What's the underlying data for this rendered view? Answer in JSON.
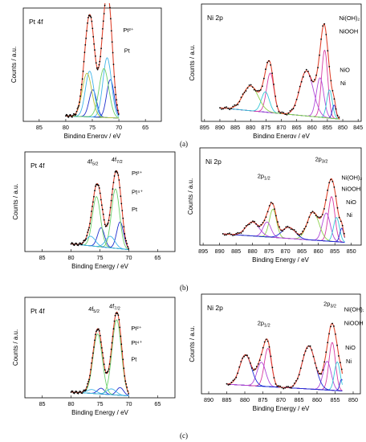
{
  "figure": {
    "row_labels": [
      "(a)",
      "(b)",
      "(c)"
    ]
  },
  "colors": {
    "raw_points": "#000000",
    "envelope": "#e0462f",
    "background": "#2a8f3a",
    "pt_metal": "#1d2ecf",
    "pt_2plus": "#3fb4e8",
    "pt_4plus": "#6ad06a",
    "pt_2plus_alt": "#b6c23a",
    "ni_metal": "#1a2bd6",
    "ni_oxide": "#35c7d8",
    "ni_oohh": "#b248d8",
    "ni_hydrox": "#d73aa3",
    "ni_sat": "#1a2bd6",
    "ni_sat2": "#8dd14a"
  },
  "chart_data": [
    {
      "panel": "a-left",
      "type": "line",
      "title": "Pt 4f",
      "xlabel": "Binding Energy / eV",
      "ylabel": "Counts / a.u.",
      "xlim": [
        88,
        62
      ],
      "ticks": [
        85,
        80,
        75,
        70,
        65
      ],
      "data_xlim": [
        80,
        70
      ],
      "annotations": [
        {
          "text": "Pt²⁺",
          "x": 69.2,
          "y": 0.82
        },
        {
          "text": "Pt",
          "x": 69.0,
          "y": 0.63
        }
      ],
      "peaks": [
        {
          "name": "Pt",
          "center": 74.9,
          "sigma": 0.7,
          "amp": 0.25,
          "color": "pt_metal"
        },
        {
          "name": "Pt",
          "center": 71.6,
          "sigma": 0.7,
          "amp": 0.35,
          "color": "pt_metal"
        },
        {
          "name": "Pt²⁺",
          "center": 75.5,
          "sigma": 0.8,
          "amp": 0.42,
          "color": "pt_2plus"
        },
        {
          "name": "Pt²⁺",
          "center": 72.2,
          "sigma": 0.8,
          "amp": 0.55,
          "color": "pt_2plus"
        },
        {
          "name": "",
          "center": 76.0,
          "sigma": 0.9,
          "amp": 0.4,
          "color": "pt_2plus_alt"
        },
        {
          "name": "",
          "center": 72.8,
          "sigma": 0.9,
          "amp": 0.45,
          "color": "pt_4plus"
        }
      ],
      "baseline": [
        0.05,
        0.03
      ]
    },
    {
      "panel": "a-right",
      "type": "line",
      "title": "Ni 2p",
      "xlabel": "Binding Energy / eV",
      "ylabel": "Counts / a.u.",
      "xlim": [
        896,
        844
      ],
      "ticks": [
        895,
        890,
        885,
        880,
        875,
        870,
        865,
        860,
        855,
        850,
        845
      ],
      "data_xlim": [
        890,
        851
      ],
      "annotations": [
        {
          "text": "Ni(OH)₂",
          "x": 851.2,
          "y": 0.9
        },
        {
          "text": "NiOOH",
          "x": 851.2,
          "y": 0.78
        },
        {
          "text": "NiO",
          "x": 851.0,
          "y": 0.44
        },
        {
          "text": "Ni",
          "x": 850.8,
          "y": 0.32
        }
      ],
      "peaks": [
        {
          "name": "Ni(OH)₂",
          "center": 855.9,
          "sigma": 1.0,
          "amp": 0.6,
          "color": "ni_hydrox"
        },
        {
          "name": "NiOOH",
          "center": 857.4,
          "sigma": 1.2,
          "amp": 0.35,
          "color": "ni_oohh"
        },
        {
          "name": "NiO",
          "center": 854.3,
          "sigma": 0.9,
          "amp": 0.25,
          "color": "ni_oxide"
        },
        {
          "name": "Ni",
          "center": 852.8,
          "sigma": 0.6,
          "amp": 0.12,
          "color": "ni_metal"
        },
        {
          "name": "",
          "center": 861.8,
          "sigma": 2.2,
          "amp": 0.4,
          "color": "ni_oohh"
        },
        {
          "name": "",
          "center": 873.6,
          "sigma": 1.2,
          "amp": 0.35,
          "color": "ni_hydrox"
        },
        {
          "name": "",
          "center": 875.2,
          "sigma": 1.3,
          "amp": 0.18,
          "color": "ni_oxide"
        },
        {
          "name": "",
          "center": 880.0,
          "sigma": 2.5,
          "amp": 0.22,
          "color": "ni_sat2"
        }
      ],
      "baseline": [
        0.12,
        0.02
      ]
    },
    {
      "panel": "b-left",
      "type": "line",
      "title": "Pt 4f",
      "xlabel": "Binding Energy / eV",
      "ylabel": "Counts / a.u.",
      "xlim": [
        88,
        62
      ],
      "ticks": [
        85,
        80,
        75,
        70,
        65
      ],
      "data_xlim": [
        80,
        70
      ],
      "annotations": [
        {
          "text": "4f5/2",
          "x": 77.2,
          "y": 0.92
        },
        {
          "text": "4f7/2",
          "x": 73.0,
          "y": 0.94
        },
        {
          "text": "Pt²⁺",
          "x": 69.5,
          "y": 0.8
        },
        {
          "text": "Pt⁴⁺",
          "x": 69.5,
          "y": 0.6
        },
        {
          "text": "Pt",
          "x": 69.5,
          "y": 0.42
        }
      ],
      "peaks": [
        {
          "name": "Pt",
          "center": 74.8,
          "sigma": 0.6,
          "amp": 0.2,
          "color": "pt_metal"
        },
        {
          "name": "Pt",
          "center": 71.5,
          "sigma": 0.6,
          "amp": 0.28,
          "color": "pt_metal"
        },
        {
          "name": "Pt²⁺",
          "center": 75.6,
          "sigma": 0.7,
          "amp": 0.52,
          "color": "pt_4plus"
        },
        {
          "name": "Pt²⁺",
          "center": 72.3,
          "sigma": 0.7,
          "amp": 0.62,
          "color": "pt_4plus"
        },
        {
          "name": "Pt⁴⁺",
          "center": 76.6,
          "sigma": 0.8,
          "amp": 0.1,
          "color": "pt_2plus"
        },
        {
          "name": "Pt⁴⁺",
          "center": 73.2,
          "sigma": 0.8,
          "amp": 0.12,
          "color": "pt_2plus"
        }
      ],
      "baseline": [
        0.08,
        0.02
      ]
    },
    {
      "panel": "b-right",
      "type": "line",
      "title": "Ni 2p",
      "xlabel": "Binding Energy / eV",
      "ylabel": "Counts / a.u.",
      "xlim": [
        896,
        847
      ],
      "ticks": [
        895,
        890,
        885,
        880,
        875,
        870,
        865,
        860,
        855,
        850
      ],
      "data_xlim": [
        889,
        852
      ],
      "annotations": [
        {
          "text": "2p1/2",
          "x": 878.5,
          "y": 0.72
        },
        {
          "text": "2p3/2",
          "x": 861.0,
          "y": 0.9
        },
        {
          "text": "Ni(OH)₂",
          "x": 853.0,
          "y": 0.7
        },
        {
          "text": "NiOOH",
          "x": 853.0,
          "y": 0.58
        },
        {
          "text": "NiO",
          "x": 851.6,
          "y": 0.44
        },
        {
          "text": "Ni",
          "x": 851.4,
          "y": 0.3
        }
      ],
      "peaks": [
        {
          "name": "Ni(OH)₂",
          "center": 856.0,
          "sigma": 1.0,
          "amp": 0.48,
          "color": "ni_hydrox"
        },
        {
          "name": "NiOOH",
          "center": 857.6,
          "sigma": 1.2,
          "amp": 0.3,
          "color": "ni_oohh"
        },
        {
          "name": "NiO",
          "center": 854.5,
          "sigma": 0.9,
          "amp": 0.26,
          "color": "ni_oxide"
        },
        {
          "name": "Ni",
          "center": 852.9,
          "sigma": 0.6,
          "amp": 0.15,
          "color": "ni_metal"
        },
        {
          "name": "",
          "center": 861.6,
          "sigma": 1.8,
          "amp": 0.3,
          "color": "ni_sat2"
        },
        {
          "name": "",
          "center": 873.8,
          "sigma": 1.1,
          "amp": 0.3,
          "color": "ni_sat2"
        },
        {
          "name": "",
          "center": 875.6,
          "sigma": 1.2,
          "amp": 0.16,
          "color": "ni_oohh"
        },
        {
          "name": "",
          "center": 880.0,
          "sigma": 2.0,
          "amp": 0.15,
          "color": "ni_oohh"
        },
        {
          "name": "",
          "center": 869.0,
          "sigma": 2.0,
          "amp": 0.12,
          "color": "ni_sat"
        }
      ],
      "baseline": [
        0.12,
        0.03
      ]
    },
    {
      "panel": "c-left",
      "type": "line",
      "title": "Pt 4f",
      "xlabel": "Binding Energy / eV",
      "ylabel": "Counts / a.u.",
      "xlim": [
        88,
        62
      ],
      "ticks": [
        85,
        80,
        75,
        70,
        65
      ],
      "data_xlim": [
        80,
        70
      ],
      "annotations": [
        {
          "text": "4f5/2",
          "x": 77.0,
          "y": 0.9
        },
        {
          "text": "4f7/2",
          "x": 73.4,
          "y": 0.93
        },
        {
          "text": "Pt²⁺",
          "x": 69.6,
          "y": 0.7
        },
        {
          "text": "Pt⁴⁺",
          "x": 69.6,
          "y": 0.55
        },
        {
          "text": "Pt",
          "x": 69.6,
          "y": 0.38
        }
      ],
      "peaks": [
        {
          "name": "Pt",
          "center": 74.8,
          "sigma": 0.6,
          "amp": 0.06,
          "color": "pt_metal"
        },
        {
          "name": "Pt",
          "center": 71.5,
          "sigma": 0.6,
          "amp": 0.08,
          "color": "pt_metal"
        },
        {
          "name": "Pt²⁺",
          "center": 75.4,
          "sigma": 0.8,
          "amp": 0.62,
          "color": "pt_4plus"
        },
        {
          "name": "Pt²⁺",
          "center": 72.1,
          "sigma": 0.8,
          "amp": 0.78,
          "color": "pt_4plus"
        },
        {
          "name": "Pt⁴⁺",
          "center": 76.4,
          "sigma": 0.8,
          "amp": 0.04,
          "color": "pt_2plus"
        },
        {
          "name": "Pt⁴⁺",
          "center": 73.0,
          "sigma": 0.8,
          "amp": 0.06,
          "color": "pt_2plus"
        }
      ],
      "baseline": [
        0.06,
        0.02
      ]
    },
    {
      "panel": "c-right",
      "type": "line",
      "title": "Ni 2p",
      "xlabel": "Binding Energy / eV",
      "ylabel": "Counts / a.u.",
      "xlim": [
        892,
        848
      ],
      "ticks": [
        890,
        885,
        880,
        875,
        870,
        865,
        860,
        855,
        850
      ],
      "data_xlim": [
        885,
        853
      ],
      "annotations": [
        {
          "text": "2p1/2",
          "x": 876.5,
          "y": 0.72
        },
        {
          "text": "2p3/2",
          "x": 858.2,
          "y": 0.92
        },
        {
          "text": "Ni(OH)₂",
          "x": 852.5,
          "y": 0.86
        },
        {
          "text": "NiOOH",
          "x": 852.5,
          "y": 0.72
        },
        {
          "text": "NiO",
          "x": 852.2,
          "y": 0.46
        },
        {
          "text": "Ni",
          "x": 852.0,
          "y": 0.32
        }
      ],
      "peaks": [
        {
          "name": "Ni(OH)₂",
          "center": 855.8,
          "sigma": 0.9,
          "amp": 0.5,
          "color": "ni_hydrox"
        },
        {
          "name": "NiOOH",
          "center": 857.2,
          "sigma": 1.1,
          "amp": 0.3,
          "color": "ni_oohh"
        },
        {
          "name": "NiO",
          "center": 854.4,
          "sigma": 0.8,
          "amp": 0.3,
          "color": "ni_oxide"
        },
        {
          "name": "Ni",
          "center": 853.2,
          "sigma": 0.5,
          "amp": 0.12,
          "color": "ni_metal"
        },
        {
          "name": "",
          "center": 862.3,
          "sigma": 1.8,
          "amp": 0.45,
          "color": "ni_sat"
        },
        {
          "name": "",
          "center": 873.6,
          "sigma": 1.0,
          "amp": 0.4,
          "color": "ni_hydrox"
        },
        {
          "name": "",
          "center": 875.4,
          "sigma": 1.2,
          "amp": 0.25,
          "color": "ni_oohh"
        },
        {
          "name": "",
          "center": 879.8,
          "sigma": 1.6,
          "amp": 0.32,
          "color": "ni_sat"
        }
      ],
      "baseline": [
        0.1,
        0.03
      ]
    }
  ]
}
